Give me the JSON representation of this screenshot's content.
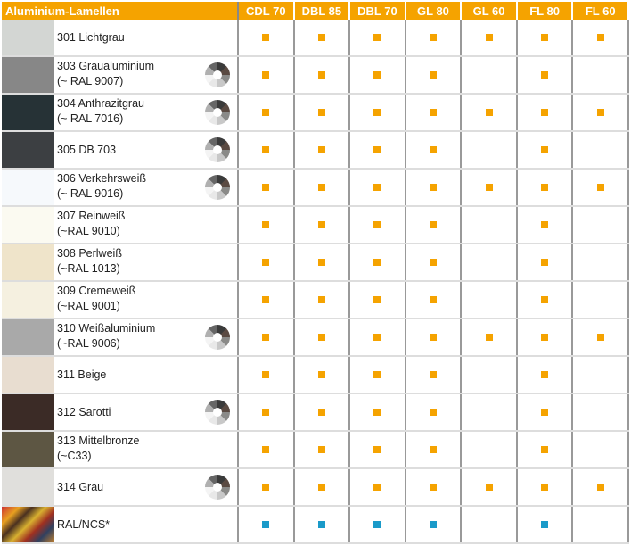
{
  "header": {
    "title": "Aluminium-Lamellen",
    "columns": [
      "CDL 70",
      "DBL 85",
      "DBL 70",
      "GL 80",
      "GL 60",
      "FL 80",
      "FL 60"
    ]
  },
  "colors": {
    "available": "#f5a300",
    "ral": "#1a9ac9"
  },
  "rows": [
    {
      "l1": "301 Lichtgrau",
      "l2": "",
      "swatch": "#d3d6d3",
      "wheel": false,
      "avail": [
        1,
        1,
        1,
        1,
        1,
        1,
        1
      ]
    },
    {
      "l1": "303 Graualuminium",
      "l2": "(~ RAL 9007)",
      "swatch": "#878787",
      "wheel": true,
      "avail": [
        1,
        1,
        1,
        1,
        0,
        1,
        0
      ]
    },
    {
      "l1": "304 Anthrazitgrau",
      "l2": "(~ RAL 7016)",
      "swatch": "#263236",
      "wheel": true,
      "avail": [
        1,
        1,
        1,
        1,
        1,
        1,
        1
      ]
    },
    {
      "l1": "305 DB 703",
      "l2": "",
      "swatch": "#3c3f42",
      "wheel": true,
      "avail": [
        1,
        1,
        1,
        1,
        0,
        1,
        0
      ]
    },
    {
      "l1": "306 Verkehrsweiß",
      "l2": "(~ RAL 9016)",
      "swatch": "#f6f9fc",
      "wheel": true,
      "avail": [
        1,
        1,
        1,
        1,
        1,
        1,
        1
      ]
    },
    {
      "l1": "307 Reinweiß",
      "l2": "(~RAL 9010)",
      "swatch": "#fbfaf1",
      "wheel": false,
      "avail": [
        1,
        1,
        1,
        1,
        0,
        1,
        0
      ]
    },
    {
      "l1": "308 Perlweiß",
      "l2": "(~RAL 1013)",
      "swatch": "#efe4ca",
      "wheel": false,
      "avail": [
        1,
        1,
        1,
        1,
        0,
        1,
        0
      ]
    },
    {
      "l1": "309 Cremeweiß",
      "l2": "(~RAL 9001)",
      "swatch": "#f5f0e0",
      "wheel": false,
      "avail": [
        1,
        1,
        1,
        1,
        0,
        1,
        0
      ]
    },
    {
      "l1": "310 Weißaluminium",
      "l2": "(~RAL 9006)",
      "swatch": "#a9a9a9",
      "wheel": true,
      "avail": [
        1,
        1,
        1,
        1,
        1,
        1,
        1
      ]
    },
    {
      "l1": "311 Beige",
      "l2": "",
      "swatch": "#e8ddd0",
      "wheel": false,
      "avail": [
        1,
        1,
        1,
        1,
        0,
        1,
        0
      ]
    },
    {
      "l1": "312 Sarotti",
      "l2": "",
      "swatch": "#3b2b26",
      "wheel": true,
      "avail": [
        1,
        1,
        1,
        1,
        0,
        1,
        0
      ]
    },
    {
      "l1": "313 Mittelbronze",
      "l2": "(~C33)",
      "swatch": "#5d5643",
      "wheel": false,
      "avail": [
        1,
        1,
        1,
        1,
        0,
        1,
        0
      ]
    },
    {
      "l1": "314 Grau",
      "l2": "",
      "swatch": "#e0dfdc",
      "wheel": true,
      "avail": [
        1,
        1,
        1,
        1,
        1,
        1,
        1
      ]
    },
    {
      "l1": "RAL/NCS*",
      "l2": "",
      "swatch": "ral",
      "wheel": false,
      "avail": [
        1,
        1,
        1,
        1,
        0,
        1,
        0
      ]
    }
  ]
}
